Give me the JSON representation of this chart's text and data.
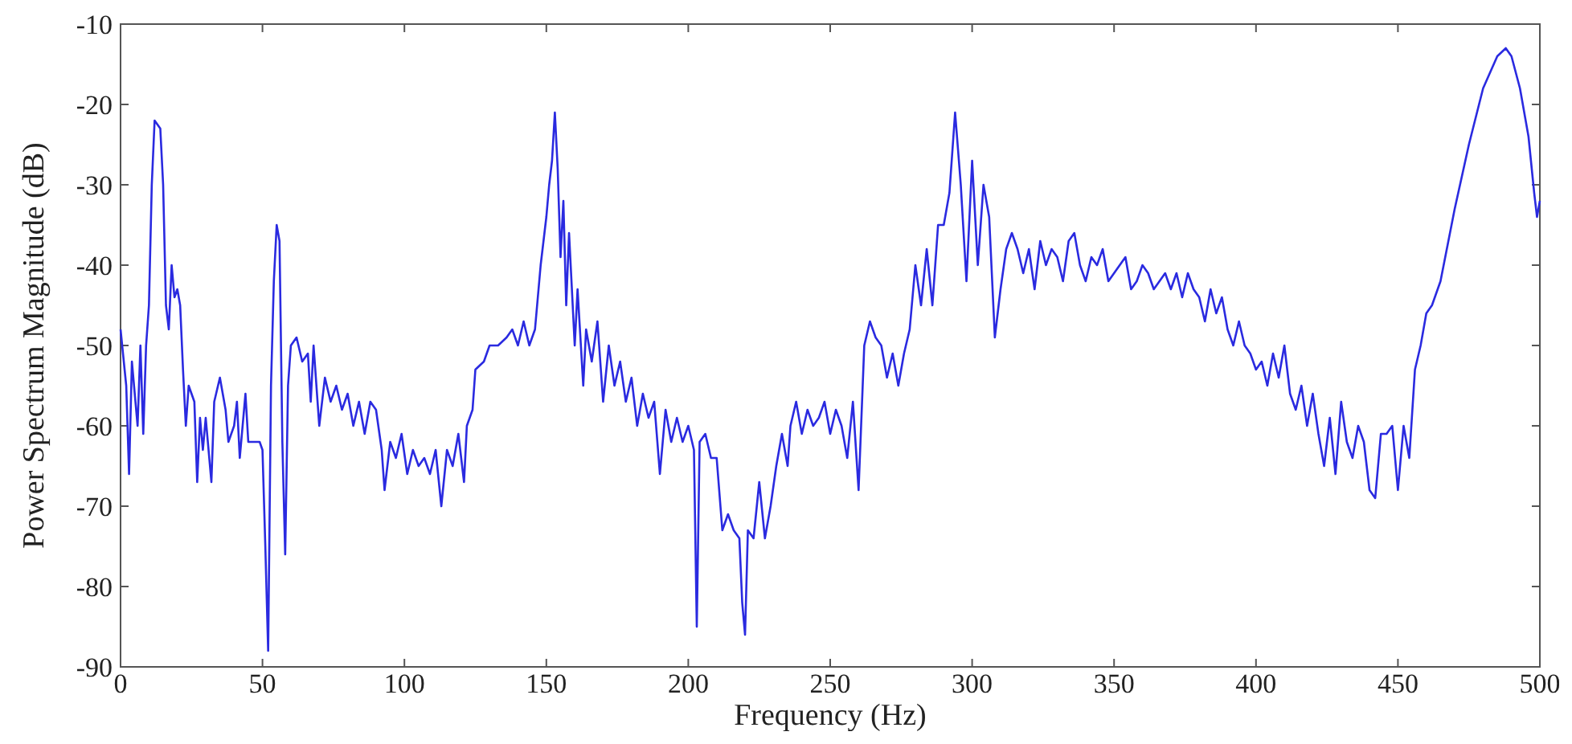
{
  "chart_data": {
    "type": "line",
    "xlabel": "Frequency (Hz)",
    "ylabel": "Power Spectrum Magnitude (dB)",
    "xlim": [
      0,
      500
    ],
    "ylim": [
      -90,
      -10
    ],
    "xticks": [
      0,
      50,
      100,
      150,
      200,
      250,
      300,
      350,
      400,
      450,
      500
    ],
    "yticks": [
      -90,
      -80,
      -70,
      -60,
      -50,
      -40,
      -30,
      -20,
      -10
    ],
    "grid": false,
    "marker": "none",
    "line_style": "solid",
    "series": [
      {
        "color": "#2a2ae0",
        "x": [
          0,
          2,
          3,
          4,
          6,
          7,
          8,
          9,
          10,
          11,
          12,
          14,
          15,
          16,
          17,
          18,
          19,
          20,
          21,
          22,
          23,
          24,
          26,
          27,
          28,
          29,
          30,
          32,
          33,
          35,
          37,
          38,
          40,
          41,
          42,
          44,
          45,
          47,
          49,
          50,
          51,
          52,
          53,
          54,
          55,
          56,
          57,
          58,
          59,
          60,
          62,
          64,
          66,
          67,
          68,
          70,
          72,
          74,
          76,
          78,
          80,
          82,
          84,
          86,
          88,
          90,
          92,
          93,
          95,
          97,
          99,
          101,
          103,
          105,
          107,
          109,
          111,
          113,
          115,
          117,
          119,
          121,
          122,
          124,
          125,
          128,
          130,
          133,
          136,
          138,
          140,
          142,
          144,
          146,
          148,
          150,
          151,
          152,
          153,
          154,
          155,
          156,
          157,
          158,
          160,
          161,
          163,
          164,
          166,
          168,
          170,
          172,
          174,
          176,
          178,
          180,
          182,
          184,
          186,
          188,
          190,
          192,
          194,
          196,
          198,
          200,
          202,
          203,
          204,
          206,
          208,
          210,
          212,
          214,
          216,
          218,
          219,
          220,
          221,
          223,
          225,
          227,
          229,
          231,
          233,
          235,
          236,
          238,
          240,
          242,
          244,
          246,
          248,
          250,
          252,
          254,
          256,
          258,
          260,
          262,
          264,
          266,
          268,
          270,
          272,
          274,
          276,
          278,
          280,
          282,
          284,
          286,
          288,
          290,
          292,
          294,
          296,
          298,
          300,
          302,
          304,
          306,
          308,
          310,
          312,
          314,
          316,
          318,
          320,
          322,
          324,
          326,
          328,
          330,
          332,
          334,
          336,
          338,
          340,
          342,
          344,
          346,
          348,
          350,
          352,
          354,
          356,
          358,
          360,
          362,
          364,
          366,
          368,
          370,
          372,
          374,
          376,
          378,
          380,
          382,
          384,
          386,
          388,
          390,
          392,
          394,
          396,
          398,
          400,
          402,
          404,
          406,
          408,
          410,
          412,
          414,
          416,
          418,
          420,
          422,
          424,
          426,
          428,
          430,
          432,
          434,
          436,
          438,
          440,
          442,
          444,
          446,
          448,
          450,
          452,
          454,
          456,
          458,
          460,
          462,
          465,
          470,
          475,
          480,
          485,
          488,
          490,
          493,
          496,
          498,
          499,
          500
        ],
        "values": [
          -48,
          -55,
          -66,
          -52,
          -60,
          -50,
          -61,
          -50,
          -45,
          -30,
          -22,
          -23,
          -30,
          -45,
          -48,
          -40,
          -44,
          -43,
          -45,
          -53,
          -60,
          -55,
          -57,
          -67,
          -59,
          -63,
          -59,
          -67,
          -57,
          -54,
          -58,
          -62,
          -60,
          -57,
          -64,
          -56,
          -62,
          -62,
          -62,
          -63,
          -75,
          -88,
          -55,
          -42,
          -35,
          -37,
          -62,
          -76,
          -55,
          -50,
          -49,
          -52,
          -51,
          -57,
          -50,
          -60,
          -54,
          -57,
          -55,
          -58,
          -56,
          -60,
          -57,
          -61,
          -57,
          -58,
          -63,
          -68,
          -62,
          -64,
          -61,
          -66,
          -63,
          -65,
          -64,
          -66,
          -63,
          -70,
          -63,
          -65,
          -61,
          -67,
          -60,
          -58,
          -53,
          -52,
          -50,
          -50,
          -49,
          -48,
          -50,
          -47,
          -50,
          -48,
          -40,
          -34,
          -30,
          -27,
          -21,
          -28,
          -39,
          -32,
          -45,
          -36,
          -50,
          -43,
          -55,
          -48,
          -52,
          -47,
          -57,
          -50,
          -55,
          -52,
          -57,
          -54,
          -60,
          -56,
          -59,
          -57,
          -66,
          -58,
          -62,
          -59,
          -62,
          -60,
          -63,
          -85,
          -62,
          -61,
          -64,
          -64,
          -73,
          -71,
          -73,
          -74,
          -82,
          -86,
          -73,
          -74,
          -67,
          -74,
          -70,
          -65,
          -61,
          -65,
          -60,
          -57,
          -61,
          -58,
          -60,
          -59,
          -57,
          -61,
          -58,
          -60,
          -64,
          -57,
          -68,
          -50,
          -47,
          -49,
          -50,
          -54,
          -51,
          -55,
          -51,
          -48,
          -40,
          -45,
          -38,
          -45,
          -35,
          -35,
          -31,
          -21,
          -30,
          -42,
          -27,
          -40,
          -30,
          -34,
          -49,
          -43,
          -38,
          -36,
          -38,
          -41,
          -38,
          -43,
          -37,
          -40,
          -38,
          -39,
          -42,
          -37,
          -36,
          -40,
          -42,
          -39,
          -40,
          -38,
          -42,
          -41,
          -40,
          -39,
          -43,
          -42,
          -40,
          -41,
          -43,
          -42,
          -41,
          -43,
          -41,
          -44,
          -41,
          -43,
          -44,
          -47,
          -43,
          -46,
          -44,
          -48,
          -50,
          -47,
          -50,
          -51,
          -53,
          -52,
          -55,
          -51,
          -54,
          -50,
          -56,
          -58,
          -55,
          -60,
          -56,
          -61,
          -65,
          -59,
          -66,
          -57,
          -62,
          -64,
          -60,
          -62,
          -68,
          -69,
          -61,
          -61,
          -60,
          -68,
          -60,
          -64,
          -53,
          -50,
          -46,
          -45,
          -42,
          -33,
          -25,
          -18,
          -14,
          -13,
          -14,
          -18,
          -24,
          -31,
          -34,
          -32
        ]
      }
    ]
  }
}
